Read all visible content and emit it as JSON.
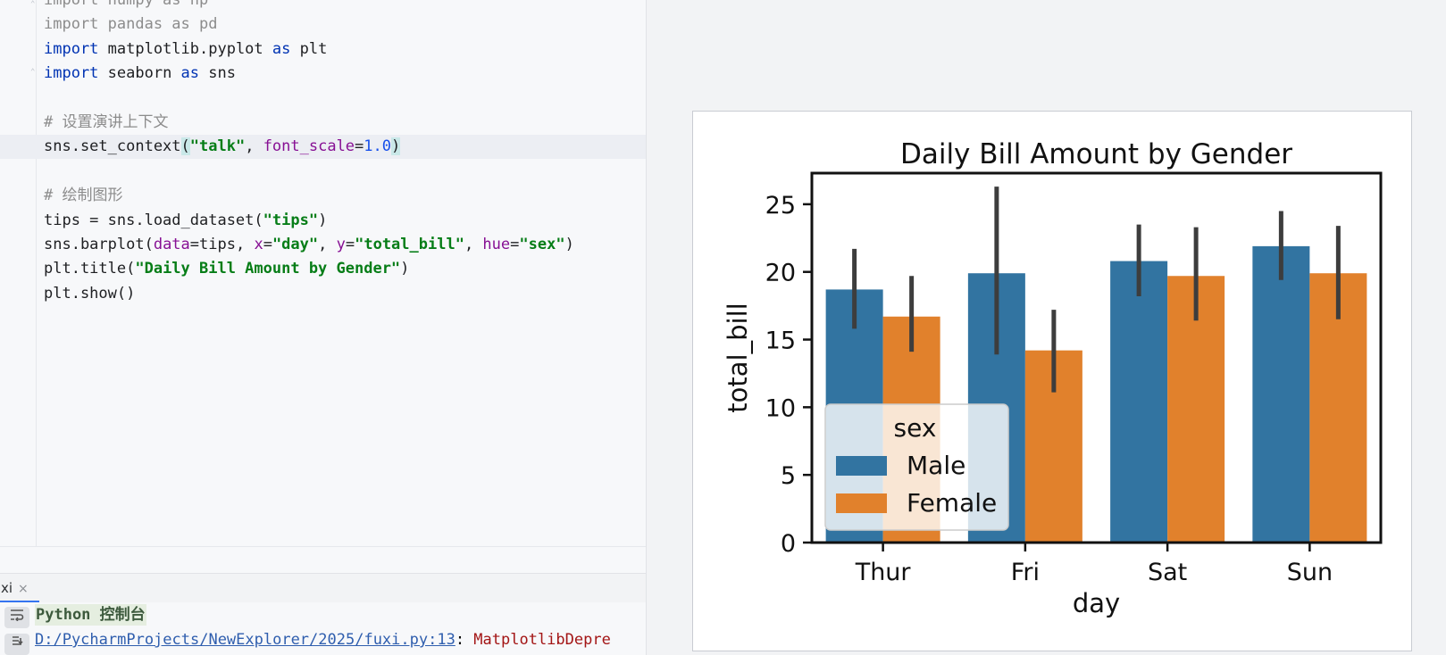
{
  "editor": {
    "lines": [
      {
        "segments": [
          {
            "t": "import numpy as np",
            "c": "dim"
          }
        ]
      },
      {
        "segments": [
          {
            "t": "import pandas as pd",
            "c": "dim"
          }
        ]
      },
      {
        "segments": [
          {
            "t": "import",
            "c": "kw"
          },
          {
            "t": " matplotlib.pyplot ",
            "c": ""
          },
          {
            "t": "as",
            "c": "kw"
          },
          {
            "t": " plt",
            "c": ""
          }
        ]
      },
      {
        "segments": [
          {
            "t": "import",
            "c": "kw"
          },
          {
            "t": " seaborn ",
            "c": ""
          },
          {
            "t": "as",
            "c": "kw"
          },
          {
            "t": " sns",
            "c": ""
          }
        ]
      },
      {
        "segments": []
      },
      {
        "segments": [
          {
            "t": "# 设置演讲上下文",
            "c": "cmt"
          }
        ]
      },
      {
        "segments": [
          {
            "t": "sns.set_context",
            "c": ""
          },
          {
            "t": "(",
            "c": "bm"
          },
          {
            "t": "\"talk\"",
            "c": "str"
          },
          {
            "t": ", ",
            "c": ""
          },
          {
            "t": "font_scale",
            "c": "kwarg"
          },
          {
            "t": "=",
            "c": ""
          },
          {
            "t": "1.0",
            "c": "num"
          },
          {
            "t": ")",
            "c": "bm"
          }
        ]
      },
      {
        "segments": []
      },
      {
        "segments": [
          {
            "t": "# 绘制图形",
            "c": "cmt"
          }
        ]
      },
      {
        "segments": [
          {
            "t": "tips = sns.load_dataset(",
            "c": ""
          },
          {
            "t": "\"tips\"",
            "c": "str"
          },
          {
            "t": ")",
            "c": ""
          }
        ]
      },
      {
        "segments": [
          {
            "t": "sns.barplot(",
            "c": ""
          },
          {
            "t": "data",
            "c": "kwarg"
          },
          {
            "t": "=tips, ",
            "c": ""
          },
          {
            "t": "x",
            "c": "kwarg"
          },
          {
            "t": "=",
            "c": ""
          },
          {
            "t": "\"day\"",
            "c": "str"
          },
          {
            "t": ", ",
            "c": ""
          },
          {
            "t": "y",
            "c": "kwarg"
          },
          {
            "t": "=",
            "c": ""
          },
          {
            "t": "\"total_bill\"",
            "c": "str"
          },
          {
            "t": ", ",
            "c": ""
          },
          {
            "t": "hue",
            "c": "kwarg"
          },
          {
            "t": "=",
            "c": ""
          },
          {
            "t": "\"sex\"",
            "c": "str"
          },
          {
            "t": ")",
            "c": ""
          }
        ]
      },
      {
        "segments": [
          {
            "t": "plt.title(",
            "c": ""
          },
          {
            "t": "\"Daily Bill Amount by Gender\"",
            "c": "str"
          },
          {
            "t": ")",
            "c": ""
          }
        ]
      },
      {
        "segments": [
          {
            "t": "plt.show()",
            "c": ""
          }
        ]
      }
    ]
  },
  "console": {
    "tab_label": "xi",
    "tab_close": "×",
    "title": "Python 控制台",
    "path": "D:/PycharmProjects/NewExplorer/2025/fuxi.py:13",
    "sep": ": ",
    "warning": "MatplotlibDepre",
    "icon_wrap": "soft-wrap-icon",
    "icon_scroll": "scroll-to-end-icon"
  },
  "chart_data": {
    "type": "bar",
    "title": "Daily Bill Amount by Gender",
    "xlabel": "day",
    "ylabel": "total_bill",
    "categories": [
      "Thur",
      "Fri",
      "Sat",
      "Sun"
    ],
    "ylim": [
      0,
      27.3
    ],
    "yticks": [
      0,
      5,
      10,
      15,
      20,
      25
    ],
    "series": [
      {
        "name": "Male",
        "color": "#3274a1",
        "values": [
          18.7,
          19.9,
          20.8,
          21.9
        ],
        "ci_low": [
          15.8,
          13.9,
          18.2,
          19.4
        ],
        "ci_high": [
          21.7,
          26.3,
          23.5,
          24.5
        ]
      },
      {
        "name": "Female",
        "color": "#e1812c",
        "values": [
          16.7,
          14.2,
          19.7,
          19.9
        ],
        "ci_low": [
          14.1,
          11.1,
          16.4,
          16.5
        ],
        "ci_high": [
          19.7,
          17.2,
          23.3,
          23.4
        ]
      }
    ],
    "legend": {
      "title": "sex",
      "position": "lower-left"
    }
  }
}
